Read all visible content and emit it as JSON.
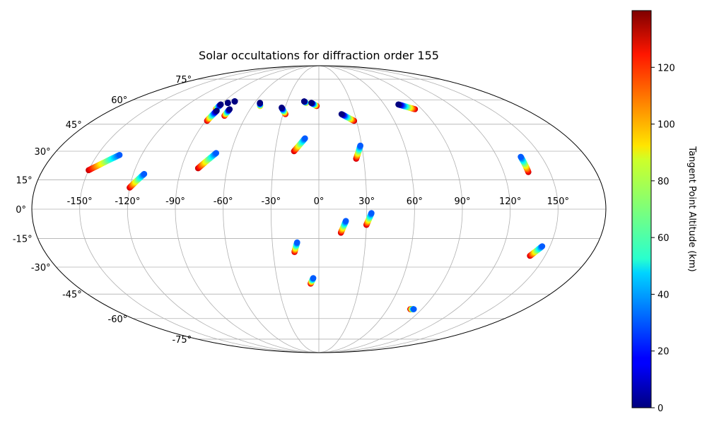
{
  "chart_data": {
    "type": "scatter",
    "projection": "mollweide",
    "title": "Solar occultations for diffraction order 155",
    "lon_tick_labels": [
      "-150°",
      "-120°",
      "-90°",
      "-60°",
      "-30°",
      "0°",
      "30°",
      "60°",
      "90°",
      "120°",
      "150°"
    ],
    "lat_tick_labels": [
      "75°",
      "60°",
      "45°",
      "30°",
      "15°",
      "0°",
      "-15°",
      "-30°",
      "-45°",
      "-60°",
      "-75°"
    ],
    "lon_ticks": [
      -150,
      -120,
      -90,
      -60,
      -30,
      0,
      30,
      60,
      90,
      120,
      150
    ],
    "lat_ticks": [
      75,
      60,
      45,
      30,
      15,
      0,
      -15,
      -30,
      -45,
      -60,
      -75
    ],
    "grid": true,
    "colorbar": {
      "label": "Tangent Point Altitude (km)",
      "colormap": "jet",
      "range": [
        0,
        140
      ],
      "ticks": [
        0,
        20,
        40,
        60,
        80,
        100,
        120
      ],
      "tick_labels": [
        "0",
        "20",
        "40",
        "60",
        "80",
        "100",
        "120"
      ]
    },
    "tracks": [
      {
        "lon_top": -90,
        "lat_top": 57,
        "lon_bottom": -90,
        "lat_bottom": 54,
        "alt_top": 0,
        "alt_bottom": 110
      },
      {
        "lon_top": -85,
        "lat_top": 58,
        "lon_bottom": -85,
        "lat_bottom": 58,
        "alt_top": 0,
        "alt_bottom": 10
      },
      {
        "lon_top": -80,
        "lat_top": 59,
        "lon_bottom": -80,
        "lat_bottom": 59,
        "alt_top": 0,
        "alt_bottom": 10
      },
      {
        "lon_top": -88,
        "lat_top": 53,
        "lon_bottom": -89,
        "lat_bottom": 47,
        "alt_top": 0,
        "alt_bottom": 130
      },
      {
        "lon_top": -78,
        "lat_top": 54,
        "lon_bottom": -78,
        "lat_bottom": 50,
        "alt_top": 0,
        "alt_bottom": 130
      },
      {
        "lon_top": -55,
        "lat_top": 58,
        "lon_bottom": -53,
        "lat_bottom": 56,
        "alt_top": 0,
        "alt_bottom": 100
      },
      {
        "lon_top": -33,
        "lat_top": 55,
        "lon_bottom": -28,
        "lat_bottom": 51,
        "alt_top": 0,
        "alt_bottom": 130
      },
      {
        "lon_top": -14,
        "lat_top": 59,
        "lon_bottom": -12,
        "lat_bottom": 58,
        "alt_top": 0,
        "alt_bottom": 100
      },
      {
        "lon_top": -7,
        "lat_top": 58,
        "lon_bottom": -2,
        "lat_bottom": 56,
        "alt_top": 0,
        "alt_bottom": 130
      },
      {
        "lon_top": 19,
        "lat_top": 51,
        "lon_bottom": 28,
        "lat_bottom": 47,
        "alt_top": 0,
        "alt_bottom": 130
      },
      {
        "lon_top": 73,
        "lat_top": 57,
        "lon_bottom": 84,
        "lat_bottom": 54,
        "alt_top": 0,
        "alt_bottom": 130
      },
      {
        "lon_top": -135,
        "lat_top": 28,
        "lon_bottom": -150,
        "lat_bottom": 20,
        "alt_top": 30,
        "alt_bottom": 130
      },
      {
        "lon_top": -113,
        "lat_top": 18,
        "lon_bottom": -120,
        "lat_bottom": 11,
        "alt_top": 30,
        "alt_bottom": 130
      },
      {
        "lon_top": -70,
        "lat_top": 29,
        "lon_bottom": -79,
        "lat_bottom": 21,
        "alt_top": 30,
        "alt_bottom": 130
      },
      {
        "lon_top": -10,
        "lat_top": 37,
        "lon_bottom": -17,
        "lat_bottom": 30,
        "alt_top": 30,
        "alt_bottom": 130
      },
      {
        "lon_top": 29,
        "lat_top": 33,
        "lon_bottom": 25,
        "lat_bottom": 26,
        "alt_top": 30,
        "alt_bottom": 130
      },
      {
        "lon_top": 136,
        "lat_top": 27,
        "lon_bottom": 136,
        "lat_bottom": 19,
        "alt_top": 30,
        "alt_bottom": 130
      },
      {
        "lon_top": 17,
        "lat_top": -6,
        "lon_bottom": 14,
        "lat_bottom": -12,
        "alt_top": 30,
        "alt_bottom": 130
      },
      {
        "lon_top": 33,
        "lat_top": -2,
        "lon_bottom": 30,
        "lat_bottom": -8,
        "alt_top": 30,
        "alt_bottom": 130
      },
      {
        "lon_top": -14,
        "lat_top": -17,
        "lon_bottom": -16,
        "lat_bottom": -22,
        "alt_top": 30,
        "alt_bottom": 130
      },
      {
        "lon_top": 145,
        "lat_top": -19,
        "lon_bottom": 140,
        "lat_bottom": -24,
        "alt_top": 30,
        "alt_bottom": 130
      },
      {
        "lon_top": -4,
        "lat_top": -36,
        "lon_bottom": -6,
        "lat_bottom": -39,
        "alt_top": 30,
        "alt_bottom": 130
      },
      {
        "lon_top": 83,
        "lat_top": -54,
        "lon_bottom": 80,
        "lat_bottom": -54,
        "alt_top": 30,
        "alt_bottom": 135
      }
    ]
  }
}
